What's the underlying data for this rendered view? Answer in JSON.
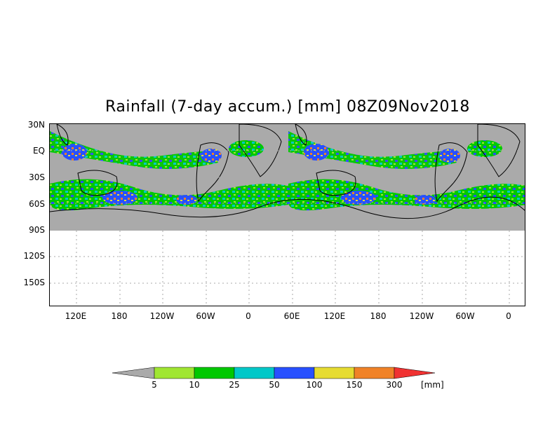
{
  "title": "Rainfall (7-day accum.) [mm] 08Z09Nov2018",
  "lat_labels": [
    "30N",
    "EQ",
    "30S",
    "60S",
    "90S",
    "120S",
    "150S"
  ],
  "lon_labels": [
    "120E",
    "180",
    "120W",
    "60W",
    "0",
    "60E",
    "120E",
    "180",
    "120W",
    "60W",
    "0"
  ],
  "legend": {
    "labels": [
      "5",
      "10",
      "25",
      "50",
      "100",
      "150",
      "300"
    ],
    "unit": "[mm]",
    "colors": [
      "#aaaaaa",
      "#a0e632",
      "#00c800",
      "#00c8c8",
      "#2850ff",
      "#e6dc32",
      "#f08228",
      "#f03232"
    ]
  },
  "colors": {
    "land_mask": "#aaaaaa",
    "grid": "#aaaaaa",
    "coast": "#000000"
  }
}
